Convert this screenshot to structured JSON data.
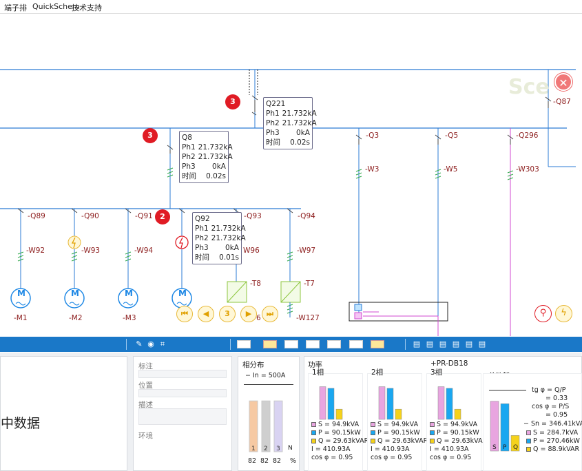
{
  "menu": {
    "items": [
      "端子排",
      "QuickSchem",
      "技术支持"
    ]
  },
  "canvas": {
    "watermark": "Sce",
    "badges": [
      "3",
      "3",
      "2"
    ],
    "tooltips": [
      {
        "title": "Q221",
        "rows": [
          [
            "Ph1",
            "21.732kA"
          ],
          [
            "Ph2",
            "21.732kA"
          ],
          [
            "Ph3",
            "0kA"
          ],
          [
            "时间",
            "0.02s"
          ]
        ]
      },
      {
        "title": "Q8",
        "rows": [
          [
            "Ph1",
            "21.732kA"
          ],
          [
            "Ph2",
            "21.732kA"
          ],
          [
            "Ph3",
            "0kA"
          ],
          [
            "时间",
            "0.02s"
          ]
        ]
      },
      {
        "title": "Q92",
        "rows": [
          [
            "Ph1",
            "21.732kA"
          ],
          [
            "Ph2",
            "21.732kA"
          ],
          [
            "Ph3",
            "0kA"
          ],
          [
            "时间",
            "0.01s"
          ]
        ]
      }
    ],
    "labels": {
      "q87": "-Q87",
      "q3": "-Q3",
      "q5": "-Q5",
      "q296": "-Q296",
      "w3": "-W3",
      "w5": "-W5",
      "w303": "-W303",
      "q89": "-Q89",
      "q90": "-Q90",
      "q91": "-Q91",
      "q93": "-Q93",
      "q94": "-Q94",
      "w92": "-W92",
      "w93": "-W93",
      "w94": "-W94",
      "w96": "W96",
      "w97": "-W97",
      "w127": "-W127",
      "t8": "-T8",
      "t7": "-T7",
      "m1": "-M1",
      "m2": "-M2",
      "m3": "-M3",
      "m_partial": "6"
    },
    "motor_letter": "M",
    "nav": {
      "page": "3"
    }
  },
  "props": {
    "label_1": "标注",
    "label_2": "位置",
    "label_3": "描述",
    "label_4": "环境"
  },
  "left_panel": {
    "text": "中数据"
  },
  "phase_panel": {
    "title": "相分布",
    "in_value": "− In = 500A",
    "bars": [
      {
        "label": "1",
        "pct": 82,
        "color": "#f6c9a3"
      },
      {
        "label": "2",
        "pct": 82,
        "color": "#cfcfcf"
      },
      {
        "label": "3",
        "pct": 82,
        "color": "#d9d3f2"
      }
    ],
    "n_label": "N",
    "values": [
      "82",
      "82",
      "82"
    ],
    "unit": "%"
  },
  "power_panel": {
    "title": "功率",
    "device": "+PR-DB18",
    "phases": [
      {
        "title": "1相",
        "S": "S = 94.9kVA",
        "P": "P = 90.15kW",
        "Q": "Q = 29.63kVAR",
        "I": "I = 410.93A",
        "cos": "cos φ = 0.95"
      },
      {
        "title": "2相",
        "S": "S = 94.9kVA",
        "P": "P = 90.15kW",
        "Q": "Q = 29.63kVAR",
        "I": "I = 410.93A",
        "cos": "cos φ = 0.95"
      },
      {
        "title": "3相",
        "S": "S = 94.9kVA",
        "P": "P = 90.15kW",
        "Q": "Q = 29.63kVAR",
        "I": "I = 410.93A",
        "cos": "cos φ = 0.95"
      }
    ],
    "phase_bar_values": {
      "S": 94.9,
      "P": 90.15,
      "Q": 29.63
    },
    "total": {
      "title": "总功耗",
      "tg1": "tg φ = Q/P",
      "tg2": "= 0.33",
      "cos1": "cos φ = P/S",
      "cos2": "= 0.95",
      "sn": "− Sn = 346.41kVA",
      "S": "S = 284.7kVA",
      "P": "P = 270.46kW",
      "Q": "Q = 88.9kVAR",
      "bar_values": {
        "S": 284.7,
        "P": 270.46,
        "Q": 88.9
      },
      "sn_value": 346.41,
      "bar_letters": [
        "S",
        "P",
        "Q"
      ]
    },
    "colors": {
      "S": "#e8a5e0",
      "P": "#1aa7f0",
      "Q": "#f5d21b"
    }
  }
}
